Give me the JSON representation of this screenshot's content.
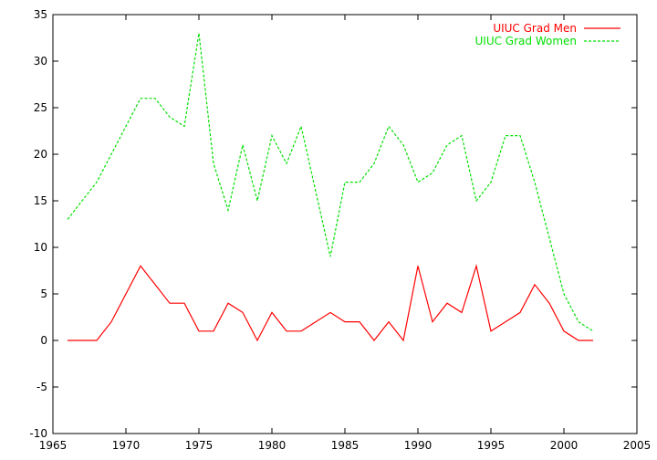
{
  "chart_data": {
    "type": "line",
    "title": "",
    "xlabel": "",
    "ylabel": "",
    "xlim": [
      1965,
      2005
    ],
    "ylim": [
      -10,
      35
    ],
    "xticks": [
      1965,
      1970,
      1975,
      1980,
      1985,
      1990,
      1995,
      2000,
      2005
    ],
    "yticks": [
      -10,
      -5,
      0,
      5,
      10,
      15,
      20,
      25,
      30,
      35
    ],
    "grid": false,
    "legend_position": "top-right",
    "x": [
      1966,
      1967,
      1968,
      1969,
      1970,
      1971,
      1972,
      1973,
      1974,
      1975,
      1976,
      1977,
      1978,
      1979,
      1980,
      1981,
      1982,
      1983,
      1984,
      1985,
      1986,
      1987,
      1988,
      1989,
      1990,
      1991,
      1992,
      1993,
      1994,
      1995,
      1996,
      1997,
      1998,
      1999,
      2000,
      2001,
      2002
    ],
    "series": [
      {
        "name": "UIUC Grad Men",
        "color": "#ff0000",
        "dash": "solid",
        "values": [
          0,
          0,
          0,
          2,
          5,
          8,
          6,
          4,
          4,
          1,
          1,
          4,
          3,
          0,
          3,
          1,
          1,
          2,
          3,
          2,
          2,
          0,
          2,
          0,
          8,
          2,
          4,
          3,
          8,
          1,
          2,
          3,
          6,
          4,
          1,
          0,
          0
        ]
      },
      {
        "name": "UIUC Grad Women",
        "color": "#00e000",
        "dash": "dashed",
        "values": [
          13,
          15,
          17,
          20,
          23,
          26,
          26,
          24,
          23,
          33,
          19,
          14,
          21,
          15,
          22,
          19,
          23,
          16,
          9,
          17,
          17,
          19,
          23,
          21,
          17,
          18,
          21,
          22,
          15,
          17,
          22,
          22,
          17,
          11,
          5,
          2,
          1
        ]
      }
    ]
  }
}
